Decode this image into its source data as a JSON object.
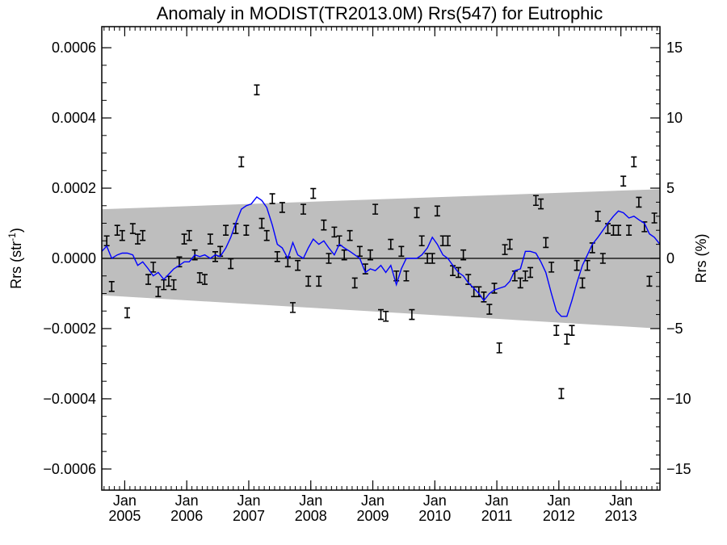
{
  "chart_data": {
    "type": "scatter",
    "title": "Anomaly in MODIST(TR2013.0M) Rrs(547) for Eutrophic",
    "ylabel_left": "Rrs (str",
    "ylabel_left_sup": "-1",
    "ylabel_left_close": ")",
    "ylabel_right": "Rrs (%)",
    "xlim": [
      2004.63,
      2013.63
    ],
    "ylim": [
      -0.00066,
      0.00066
    ],
    "y2lim": [
      -16.5,
      16.5
    ],
    "grid": false,
    "left_ticks": [
      {
        "value": 0.0006,
        "label": "0.0006"
      },
      {
        "value": 0.0004,
        "label": "0.0004"
      },
      {
        "value": 0.0002,
        "label": "0.0002"
      },
      {
        "value": 0.0,
        "label": "0.0000"
      },
      {
        "value": -0.0002,
        "label": "−0.0002"
      },
      {
        "value": -0.0004,
        "label": "−0.0004"
      },
      {
        "value": -0.0006,
        "label": "−0.0006"
      }
    ],
    "right_ticks": [
      {
        "value": 15,
        "label": "15"
      },
      {
        "value": 10,
        "label": "10"
      },
      {
        "value": 5,
        "label": "5"
      },
      {
        "value": 0,
        "label": "0"
      },
      {
        "value": -5,
        "label": "−5"
      },
      {
        "value": -10,
        "label": "−10"
      },
      {
        "value": -15,
        "label": "−15"
      }
    ],
    "x_ticks": [
      {
        "value": 2005.0,
        "line1": "Jan",
        "line2": "2005"
      },
      {
        "value": 2006.0,
        "line1": "Jan",
        "line2": "2006"
      },
      {
        "value": 2007.0,
        "line1": "Jan",
        "line2": "2007"
      },
      {
        "value": 2008.0,
        "line1": "Jan",
        "line2": "2008"
      },
      {
        "value": 2009.0,
        "line1": "Jan",
        "line2": "2009"
      },
      {
        "value": 2010.0,
        "line1": "Jan",
        "line2": "2010"
      },
      {
        "value": 2011.0,
        "line1": "Jan",
        "line2": "2011"
      },
      {
        "value": 2012.0,
        "line1": "Jan",
        "line2": "2012"
      },
      {
        "value": 2013.0,
        "line1": "Jan",
        "line2": "2013"
      }
    ],
    "band": {
      "color": "#bebebe",
      "upper": [
        [
          2004.63,
          0.00014
        ],
        [
          2013.63,
          0.000197
        ]
      ],
      "lower": [
        [
          2004.63,
          -0.000105
        ],
        [
          2013.63,
          -0.0002
        ]
      ]
    },
    "zero_line": 0.0,
    "series": [
      {
        "kind": "errorbar-points",
        "color": "#000000",
        "points": [
          {
            "x": 2004.71,
            "y": 5e-05
          },
          {
            "x": 2004.79,
            "y": -8e-05
          },
          {
            "x": 2004.88,
            "y": 8e-05
          },
          {
            "x": 2004.96,
            "y": 6.5e-05
          },
          {
            "x": 2005.04,
            "y": -0.000155
          },
          {
            "x": 2005.13,
            "y": 8.5e-05
          },
          {
            "x": 2005.21,
            "y": 5.5e-05
          },
          {
            "x": 2005.29,
            "y": 6.5e-05
          },
          {
            "x": 2005.38,
            "y": -6e-05
          },
          {
            "x": 2005.46,
            "y": -2.5e-05
          },
          {
            "x": 2005.54,
            "y": -9.5e-05
          },
          {
            "x": 2005.63,
            "y": -7.5e-05
          },
          {
            "x": 2005.71,
            "y": -6.5e-05
          },
          {
            "x": 2005.79,
            "y": -7.5e-05
          },
          {
            "x": 2005.88,
            "y": -1e-05
          },
          {
            "x": 2005.96,
            "y": 5.5e-05
          },
          {
            "x": 2006.04,
            "y": 6.5e-05
          },
          {
            "x": 2006.13,
            "y": 1e-05
          },
          {
            "x": 2006.21,
            "y": -5.5e-05
          },
          {
            "x": 2006.29,
            "y": -6e-05
          },
          {
            "x": 2006.38,
            "y": 5.5e-05
          },
          {
            "x": 2006.46,
            "y": 5e-06
          },
          {
            "x": 2006.54,
            "y": 2e-05
          },
          {
            "x": 2006.63,
            "y": 8e-05
          },
          {
            "x": 2006.71,
            "y": -1.5e-05
          },
          {
            "x": 2006.79,
            "y": 8.5e-05
          },
          {
            "x": 2006.88,
            "y": 0.000275
          },
          {
            "x": 2006.96,
            "y": 8e-05
          },
          {
            "x": 2007.13,
            "y": 0.00048
          },
          {
            "x": 2007.21,
            "y": 0.0001
          },
          {
            "x": 2007.29,
            "y": 6.5e-05
          },
          {
            "x": 2007.38,
            "y": 0.00017
          },
          {
            "x": 2007.46,
            "y": 5e-06
          },
          {
            "x": 2007.54,
            "y": 0.000145
          },
          {
            "x": 2007.63,
            "y": -1e-05
          },
          {
            "x": 2007.71,
            "y": -0.00014
          },
          {
            "x": 2007.79,
            "y": -2e-05
          },
          {
            "x": 2007.88,
            "y": 0.00014
          },
          {
            "x": 2007.96,
            "y": -6.5e-05
          },
          {
            "x": 2008.04,
            "y": 0.000185
          },
          {
            "x": 2008.13,
            "y": -6.5e-05
          },
          {
            "x": 2008.21,
            "y": 9.5e-05
          },
          {
            "x": 2008.29,
            "y": 0.0
          },
          {
            "x": 2008.38,
            "y": 7.5e-05
          },
          {
            "x": 2008.46,
            "y": 5e-05
          },
          {
            "x": 2008.54,
            "y": 1e-05
          },
          {
            "x": 2008.63,
            "y": 6.5e-05
          },
          {
            "x": 2008.71,
            "y": -7e-05
          },
          {
            "x": 2008.79,
            "y": 2e-05
          },
          {
            "x": 2008.88,
            "y": -3e-05
          },
          {
            "x": 2008.96,
            "y": 1e-05
          },
          {
            "x": 2009.04,
            "y": 0.00014
          },
          {
            "x": 2009.13,
            "y": -0.00016
          },
          {
            "x": 2009.21,
            "y": -0.000165
          },
          {
            "x": 2009.29,
            "y": 4e-05
          },
          {
            "x": 2009.38,
            "y": -5e-05
          },
          {
            "x": 2009.46,
            "y": 2e-05
          },
          {
            "x": 2009.54,
            "y": -5e-05
          },
          {
            "x": 2009.63,
            "y": -0.00016
          },
          {
            "x": 2009.71,
            "y": 0.00013
          },
          {
            "x": 2009.79,
            "y": 5e-05
          },
          {
            "x": 2009.88,
            "y": 0.0
          },
          {
            "x": 2009.96,
            "y": 0.0
          },
          {
            "x": 2010.04,
            "y": 0.000135
          },
          {
            "x": 2010.13,
            "y": 5e-05
          },
          {
            "x": 2010.21,
            "y": 5e-05
          },
          {
            "x": 2010.29,
            "y": -3.5e-05
          },
          {
            "x": 2010.38,
            "y": -4e-05
          },
          {
            "x": 2010.46,
            "y": 1e-05
          },
          {
            "x": 2010.54,
            "y": -6e-05
          },
          {
            "x": 2010.63,
            "y": -9.5e-05
          },
          {
            "x": 2010.71,
            "y": -9.5e-05
          },
          {
            "x": 2010.79,
            "y": -0.00011
          },
          {
            "x": 2010.88,
            "y": -0.000145
          },
          {
            "x": 2010.96,
            "y": -8.5e-05
          },
          {
            "x": 2011.04,
            "y": -0.000255
          },
          {
            "x": 2011.13,
            "y": 2.5e-05
          },
          {
            "x": 2011.21,
            "y": 4e-05
          },
          {
            "x": 2011.29,
            "y": -5e-05
          },
          {
            "x": 2011.38,
            "y": -7e-05
          },
          {
            "x": 2011.46,
            "y": -5e-05
          },
          {
            "x": 2011.54,
            "y": -4e-05
          },
          {
            "x": 2011.63,
            "y": 0.000165
          },
          {
            "x": 2011.71,
            "y": 0.000155
          },
          {
            "x": 2011.79,
            "y": 4.5e-05
          },
          {
            "x": 2011.88,
            "y": -2.5e-05
          },
          {
            "x": 2011.96,
            "y": -0.000205
          },
          {
            "x": 2012.04,
            "y": -0.000385
          },
          {
            "x": 2012.13,
            "y": -0.00023
          },
          {
            "x": 2012.21,
            "y": -0.000205
          },
          {
            "x": 2012.29,
            "y": -2e-05
          },
          {
            "x": 2012.38,
            "y": -7e-05
          },
          {
            "x": 2012.46,
            "y": -2e-05
          },
          {
            "x": 2012.54,
            "y": 3e-05
          },
          {
            "x": 2012.63,
            "y": 0.00012
          },
          {
            "x": 2012.71,
            "y": 0.0
          },
          {
            "x": 2012.79,
            "y": 8.5e-05
          },
          {
            "x": 2012.88,
            "y": 8e-05
          },
          {
            "x": 2012.96,
            "y": 8e-05
          },
          {
            "x": 2013.04,
            "y": 0.00022
          },
          {
            "x": 2013.13,
            "y": 8e-05
          },
          {
            "x": 2013.21,
            "y": 0.000275
          },
          {
            "x": 2013.29,
            "y": 0.00016
          },
          {
            "x": 2013.38,
            "y": 9e-05
          },
          {
            "x": 2013.46,
            "y": -6.5e-05
          },
          {
            "x": 2013.54,
            "y": 0.000115
          }
        ]
      },
      {
        "kind": "line",
        "color": "#0000ff",
        "points": [
          [
            2004.63,
            2e-05
          ],
          [
            2004.71,
            3.5e-05
          ],
          [
            2004.79,
            0.0
          ],
          [
            2004.88,
            1e-05
          ],
          [
            2004.96,
            1.5e-05
          ],
          [
            2005.04,
            1.5e-05
          ],
          [
            2005.13,
            1e-05
          ],
          [
            2005.21,
            -2e-05
          ],
          [
            2005.29,
            -1e-05
          ],
          [
            2005.38,
            -3e-05
          ],
          [
            2005.46,
            -5e-05
          ],
          [
            2005.54,
            -4e-05
          ],
          [
            2005.63,
            -6e-05
          ],
          [
            2005.71,
            -4.5e-05
          ],
          [
            2005.79,
            -3e-05
          ],
          [
            2005.88,
            -2e-05
          ],
          [
            2005.96,
            -1e-05
          ],
          [
            2006.04,
            -1e-05
          ],
          [
            2006.13,
            1e-05
          ],
          [
            2006.21,
            5e-06
          ],
          [
            2006.29,
            1e-05
          ],
          [
            2006.38,
            0.0
          ],
          [
            2006.46,
            1e-05
          ],
          [
            2006.54,
            5e-06
          ],
          [
            2006.63,
            3e-05
          ],
          [
            2006.71,
            6e-05
          ],
          [
            2006.79,
            0.0001
          ],
          [
            2006.88,
            0.00014
          ],
          [
            2006.96,
            0.00015
          ],
          [
            2007.04,
            0.000155
          ],
          [
            2007.13,
            0.000175
          ],
          [
            2007.21,
            0.000165
          ],
          [
            2007.29,
            0.000145
          ],
          [
            2007.38,
            9.5e-05
          ],
          [
            2007.46,
            4e-05
          ],
          [
            2007.54,
            3e-05
          ],
          [
            2007.63,
            0.0
          ],
          [
            2007.71,
            4.5e-05
          ],
          [
            2007.79,
            1e-05
          ],
          [
            2007.88,
            0.0
          ],
          [
            2007.96,
            3e-05
          ],
          [
            2008.04,
            5.5e-05
          ],
          [
            2008.13,
            4e-05
          ],
          [
            2008.21,
            5e-05
          ],
          [
            2008.29,
            3e-05
          ],
          [
            2008.38,
            1e-05
          ],
          [
            2008.46,
            4e-05
          ],
          [
            2008.54,
            3e-05
          ],
          [
            2008.63,
            2e-05
          ],
          [
            2008.71,
            1e-05
          ],
          [
            2008.79,
            0.0
          ],
          [
            2008.88,
            -4e-05
          ],
          [
            2008.96,
            -3e-05
          ],
          [
            2009.04,
            -3.5e-05
          ],
          [
            2009.13,
            -2e-05
          ],
          [
            2009.21,
            -4e-05
          ],
          [
            2009.29,
            -2e-05
          ],
          [
            2009.38,
            -7.5e-05
          ],
          [
            2009.46,
            -3e-05
          ],
          [
            2009.54,
            0.0
          ],
          [
            2009.63,
            0.0
          ],
          [
            2009.71,
            0.0
          ],
          [
            2009.79,
            1e-05
          ],
          [
            2009.88,
            3e-05
          ],
          [
            2009.96,
            6e-05
          ],
          [
            2010.04,
            4e-05
          ],
          [
            2010.13,
            1e-05
          ],
          [
            2010.21,
            0.0
          ],
          [
            2010.29,
            -2e-05
          ],
          [
            2010.38,
            -4e-05
          ],
          [
            2010.46,
            -5e-05
          ],
          [
            2010.54,
            -7e-05
          ],
          [
            2010.63,
            -8.5e-05
          ],
          [
            2010.71,
            -0.0001
          ],
          [
            2010.79,
            -0.00012
          ],
          [
            2010.88,
            -0.0001
          ],
          [
            2010.96,
            -9e-05
          ],
          [
            2011.04,
            -8.5e-05
          ],
          [
            2011.13,
            -8e-05
          ],
          [
            2011.21,
            -6.5e-05
          ],
          [
            2011.29,
            -3.5e-05
          ],
          [
            2011.38,
            -3e-05
          ],
          [
            2011.46,
            2e-05
          ],
          [
            2011.54,
            2e-05
          ],
          [
            2011.63,
            1.5e-05
          ],
          [
            2011.71,
            -1e-05
          ],
          [
            2011.79,
            -4e-05
          ],
          [
            2011.88,
            -0.0001
          ],
          [
            2011.96,
            -0.00015
          ],
          [
            2012.04,
            -0.000165
          ],
          [
            2012.13,
            -0.000165
          ],
          [
            2012.21,
            -0.00012
          ],
          [
            2012.29,
            -7e-05
          ],
          [
            2012.38,
            -2e-05
          ],
          [
            2012.46,
            1e-05
          ],
          [
            2012.54,
            4e-05
          ],
          [
            2012.63,
            6e-05
          ],
          [
            2012.71,
            8e-05
          ],
          [
            2012.79,
            0.0001
          ],
          [
            2012.88,
            0.00012
          ],
          [
            2012.96,
            0.000135
          ],
          [
            2013.04,
            0.00013
          ],
          [
            2013.13,
            0.000115
          ],
          [
            2013.21,
            0.00012
          ],
          [
            2013.29,
            0.00011
          ],
          [
            2013.38,
            0.0001
          ],
          [
            2013.46,
            7e-05
          ],
          [
            2013.54,
            6e-05
          ],
          [
            2013.63,
            4e-05
          ]
        ]
      }
    ]
  }
}
